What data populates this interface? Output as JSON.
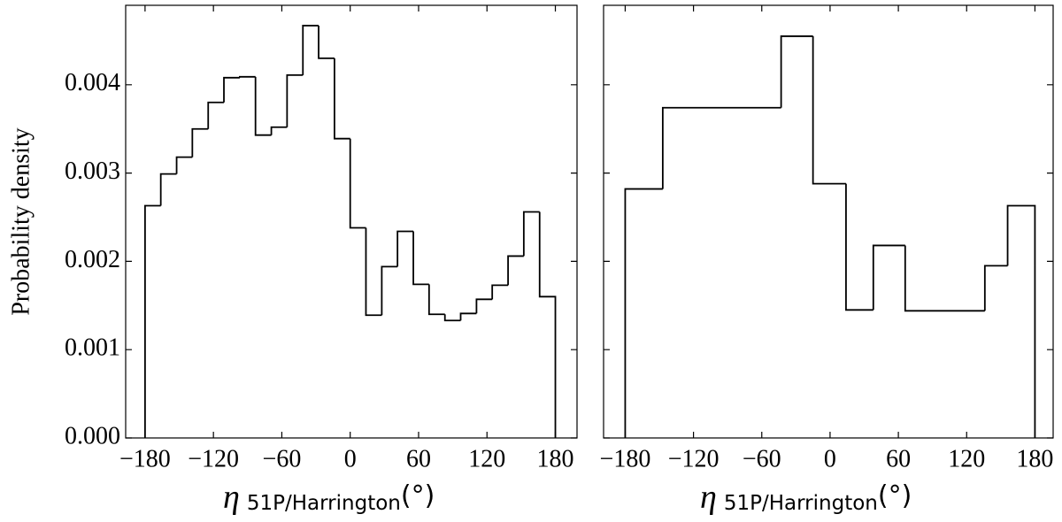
{
  "chart_data": [
    {
      "type": "histogram",
      "ylabel": "Probability density",
      "xlabel": {
        "symbol": "η",
        "subscript": "51P/Harrington",
        "unit": "(°)"
      },
      "bins": [
        -180,
        -166.2,
        -152.3,
        -138.5,
        -124.6,
        -110.8,
        -96.9,
        -83.1,
        -69.2,
        -55.4,
        -41.5,
        -27.7,
        -13.8,
        0,
        13.8,
        27.7,
        41.5,
        55.4,
        69.2,
        83.1,
        96.9,
        110.8,
        124.6,
        138.5,
        152.3,
        166.2,
        180
      ],
      "values": [
        0.00263,
        0.00299,
        0.00318,
        0.0035,
        0.0038,
        0.00408,
        0.00409,
        0.00343,
        0.00352,
        0.00411,
        0.00467,
        0.0043,
        0.00339,
        0.00238,
        0.00139,
        0.00194,
        0.00234,
        0.00174,
        0.0014,
        0.00133,
        0.00141,
        0.00157,
        0.00173,
        0.00206,
        0.00256,
        0.0016
      ],
      "color": "#000000",
      "xlim": [
        -197,
        199
      ],
      "xticks": [
        {
          "value": -180,
          "label": "−180"
        },
        {
          "value": -120,
          "label": "−120"
        },
        {
          "value": -60,
          "label": "−60"
        },
        0,
        60,
        120,
        180
      ],
      "ylim": [
        0,
        0.0049
      ],
      "yticks": [
        {
          "value": 0,
          "label": "0.000"
        },
        0.001,
        0.002,
        0.003,
        0.004
      ],
      "ytick_labels": true
    },
    {
      "type": "histogram",
      "xlabel": {
        "symbol": "η",
        "subscript": "51P/Harrington",
        "unit": "(°)"
      },
      "bins": [
        -180,
        -147,
        -43,
        -15,
        14,
        38,
        66,
        136,
        156,
        180
      ],
      "values": [
        0.00282,
        0.00374,
        0.00455,
        0.00288,
        0.00145,
        0.00218,
        0.00144,
        0.00195,
        0.00263
      ],
      "color": "#000000",
      "xlim": [
        -199,
        196
      ],
      "xticks": [
        {
          "value": -180,
          "label": "−180"
        },
        {
          "value": -120,
          "label": "−120"
        },
        {
          "value": -60,
          "label": "−60"
        },
        0,
        60,
        120,
        180
      ],
      "ylim": [
        0,
        0.0049
      ],
      "yticks": [
        0,
        0.001,
        0.002,
        0.003,
        0.004
      ],
      "ytick_labels": false
    }
  ]
}
